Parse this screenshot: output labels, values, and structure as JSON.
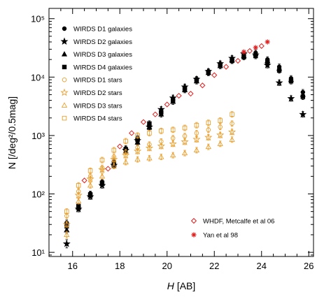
{
  "chart_data": {
    "type": "scatter",
    "title": "",
    "xlabel_italic": "H",
    "xlabel_unit": "[AB]",
    "ylabel": "N [/deg²/0.5mag]",
    "xlim": [
      15.0,
      26.2
    ],
    "ylim": [
      8.5,
      150000
    ],
    "yscale": "log",
    "grid": false,
    "legend_position": "top-left",
    "x_ticks": [
      16,
      18,
      20,
      22,
      24,
      26
    ],
    "x_tick_labels": [
      "16",
      "18",
      "20",
      "22",
      "24",
      "26"
    ],
    "y_ticks": [
      10,
      100,
      1000,
      10000,
      100000
    ],
    "y_tick_labels": [
      "10¹",
      "10²",
      "10³",
      "10⁴",
      "10⁵"
    ],
    "legend2_position": "bottom-right",
    "colors": {
      "galaxies": "#000000",
      "stars": "#e8a030",
      "whdf": "#e02020",
      "yan": "#e02020"
    },
    "series": [
      {
        "name": "WIRDS D1 galaxies",
        "marker": "circle",
        "color": "#000000",
        "filled": true,
        "points": [
          [
            15.75,
            32
          ],
          [
            16.25,
            60
          ],
          [
            16.75,
            100
          ],
          [
            17.25,
            160
          ],
          [
            17.75,
            350
          ],
          [
            18.25,
            600
          ],
          [
            18.75,
            900
          ],
          [
            19.25,
            1500
          ],
          [
            19.75,
            2600
          ],
          [
            20.25,
            4100
          ],
          [
            20.75,
            6500
          ],
          [
            21.25,
            8800
          ],
          [
            21.75,
            12000
          ],
          [
            22.25,
            16000
          ],
          [
            22.75,
            20000
          ],
          [
            23.25,
            24000
          ],
          [
            23.75,
            26000
          ],
          [
            24.25,
            20000
          ],
          [
            24.75,
            15000
          ],
          [
            25.25,
            9500
          ],
          [
            25.75,
            5500
          ]
        ]
      },
      {
        "name": "WIRDS D2 galaxies",
        "marker": "star",
        "color": "#000000",
        "filled": true,
        "points": [
          [
            15.75,
            14
          ],
          [
            16.25,
            55
          ],
          [
            16.75,
            90
          ],
          [
            17.25,
            140
          ],
          [
            17.75,
            310
          ],
          [
            18.25,
            560
          ],
          [
            18.75,
            820
          ],
          [
            19.25,
            1400
          ],
          [
            19.75,
            2800
          ],
          [
            20.25,
            4400
          ],
          [
            20.75,
            6800
          ],
          [
            21.25,
            9200
          ],
          [
            21.75,
            12500
          ],
          [
            22.25,
            17000
          ],
          [
            22.75,
            21000
          ],
          [
            23.25,
            25000
          ],
          [
            23.75,
            24000
          ],
          [
            24.25,
            16000
          ],
          [
            24.75,
            8000
          ],
          [
            25.25,
            4300
          ],
          [
            25.75,
            2300
          ]
        ]
      },
      {
        "name": "WIRDS D3 galaxies",
        "marker": "triangle",
        "color": "#000000",
        "filled": true,
        "points": [
          [
            15.75,
            24
          ],
          [
            16.25,
            58
          ],
          [
            16.75,
            95
          ],
          [
            17.25,
            150
          ],
          [
            17.75,
            320
          ],
          [
            18.25,
            540
          ],
          [
            18.75,
            760
          ],
          [
            19.25,
            1400
          ],
          [
            19.75,
            2300
          ],
          [
            20.25,
            3800
          ],
          [
            20.75,
            6000
          ],
          [
            21.25,
            8500
          ],
          [
            21.75,
            11800
          ],
          [
            22.25,
            15500
          ],
          [
            22.75,
            19500
          ],
          [
            23.25,
            23000
          ],
          [
            23.75,
            25000
          ],
          [
            24.25,
            19000
          ],
          [
            24.75,
            14000
          ],
          [
            25.25,
            9000
          ],
          [
            25.75,
            5000
          ]
        ]
      },
      {
        "name": "WIRDS D4 galaxies",
        "marker": "square",
        "color": "#000000",
        "filled": true,
        "points": [
          [
            15.75,
            28
          ],
          [
            16.25,
            62
          ],
          [
            16.75,
            98
          ],
          [
            17.25,
            155
          ],
          [
            17.75,
            340
          ],
          [
            18.25,
            580
          ],
          [
            18.75,
            850
          ],
          [
            19.25,
            1600
          ],
          [
            19.75,
            2500
          ],
          [
            20.25,
            4000
          ],
          [
            20.75,
            6200
          ],
          [
            21.25,
            9000
          ],
          [
            21.75,
            12200
          ],
          [
            22.25,
            16500
          ],
          [
            22.75,
            19000
          ],
          [
            23.25,
            22000
          ],
          [
            23.75,
            23000
          ],
          [
            24.25,
            18000
          ],
          [
            24.75,
            13000
          ],
          [
            25.25,
            8500
          ],
          [
            25.75,
            4600
          ]
        ]
      },
      {
        "name": "WIRDS D1 stars",
        "marker": "circle",
        "color": "#e8a030",
        "filled": false,
        "points": [
          [
            15.75,
            42
          ],
          [
            16.25,
            110
          ],
          [
            16.75,
            200
          ],
          [
            17.25,
            280
          ],
          [
            17.75,
            430
          ],
          [
            18.25,
            520
          ],
          [
            18.75,
            620
          ],
          [
            19.25,
            700
          ],
          [
            19.75,
            790
          ],
          [
            20.25,
            900
          ],
          [
            20.75,
            980
          ],
          [
            21.25,
            1100
          ],
          [
            21.75,
            1250
          ],
          [
            22.25,
            1400
          ],
          [
            22.75,
            1600
          ]
        ]
      },
      {
        "name": "WIRDS D2 stars",
        "marker": "star",
        "color": "#e8a030",
        "filled": false,
        "points": [
          [
            15.75,
            30
          ],
          [
            16.25,
            95
          ],
          [
            16.75,
            180
          ],
          [
            17.25,
            260
          ],
          [
            17.75,
            390
          ],
          [
            18.25,
            460
          ],
          [
            18.75,
            540
          ],
          [
            19.25,
            610
          ],
          [
            19.75,
            660
          ],
          [
            20.25,
            720
          ],
          [
            20.75,
            780
          ],
          [
            21.25,
            860
          ],
          [
            21.75,
            930
          ],
          [
            22.25,
            1020
          ],
          [
            22.75,
            1150
          ]
        ]
      },
      {
        "name": "WIRDS D3 stars",
        "marker": "triangle",
        "color": "#e8a030",
        "filled": false,
        "points": [
          [
            15.75,
            20
          ],
          [
            16.25,
            75
          ],
          [
            16.75,
            140
          ],
          [
            17.25,
            200
          ],
          [
            17.75,
            300
          ],
          [
            18.25,
            350
          ],
          [
            18.75,
            390
          ],
          [
            19.25,
            410
          ],
          [
            19.75,
            430
          ],
          [
            20.25,
            460
          ],
          [
            20.75,
            500
          ],
          [
            21.25,
            560
          ],
          [
            21.75,
            640
          ],
          [
            22.25,
            720
          ],
          [
            22.75,
            850
          ]
        ]
      },
      {
        "name": "WIRDS D4 stars",
        "marker": "square",
        "color": "#e8a030",
        "filled": false,
        "points": [
          [
            15.75,
            50
          ],
          [
            16.25,
            140
          ],
          [
            16.75,
            250
          ],
          [
            17.25,
            380
          ],
          [
            17.75,
            560
          ],
          [
            18.25,
            800
          ],
          [
            18.75,
            1000
          ],
          [
            19.25,
            1100
          ],
          [
            19.75,
            1200
          ],
          [
            20.25,
            1250
          ],
          [
            20.75,
            1350
          ],
          [
            21.25,
            1500
          ],
          [
            21.75,
            1650
          ],
          [
            22.25,
            1800
          ],
          [
            22.75,
            2300
          ]
        ]
      },
      {
        "name": "WHDF, Metcalfe et al 06",
        "marker": "diamond",
        "color": "#e02020",
        "filled": false,
        "points": [
          [
            16.5,
            170
          ],
          [
            17.5,
            270
          ],
          [
            18.0,
            650
          ],
          [
            18.5,
            1100
          ],
          [
            19.0,
            1700
          ],
          [
            19.5,
            2300
          ],
          [
            20.0,
            3400
          ],
          [
            20.5,
            4800
          ],
          [
            21.0,
            5200
          ],
          [
            21.5,
            7200
          ],
          [
            22.0,
            10800
          ],
          [
            22.5,
            15000
          ],
          [
            23.0,
            19000
          ],
          [
            23.5,
            28000
          ],
          [
            24.0,
            34000
          ]
        ]
      },
      {
        "name": "Yan et al 98",
        "marker": "asterisk",
        "color": "#e02020",
        "filled": false,
        "points": [
          [
            23.25,
            27000
          ],
          [
            23.75,
            32000
          ],
          [
            24.25,
            40000
          ]
        ]
      }
    ]
  }
}
